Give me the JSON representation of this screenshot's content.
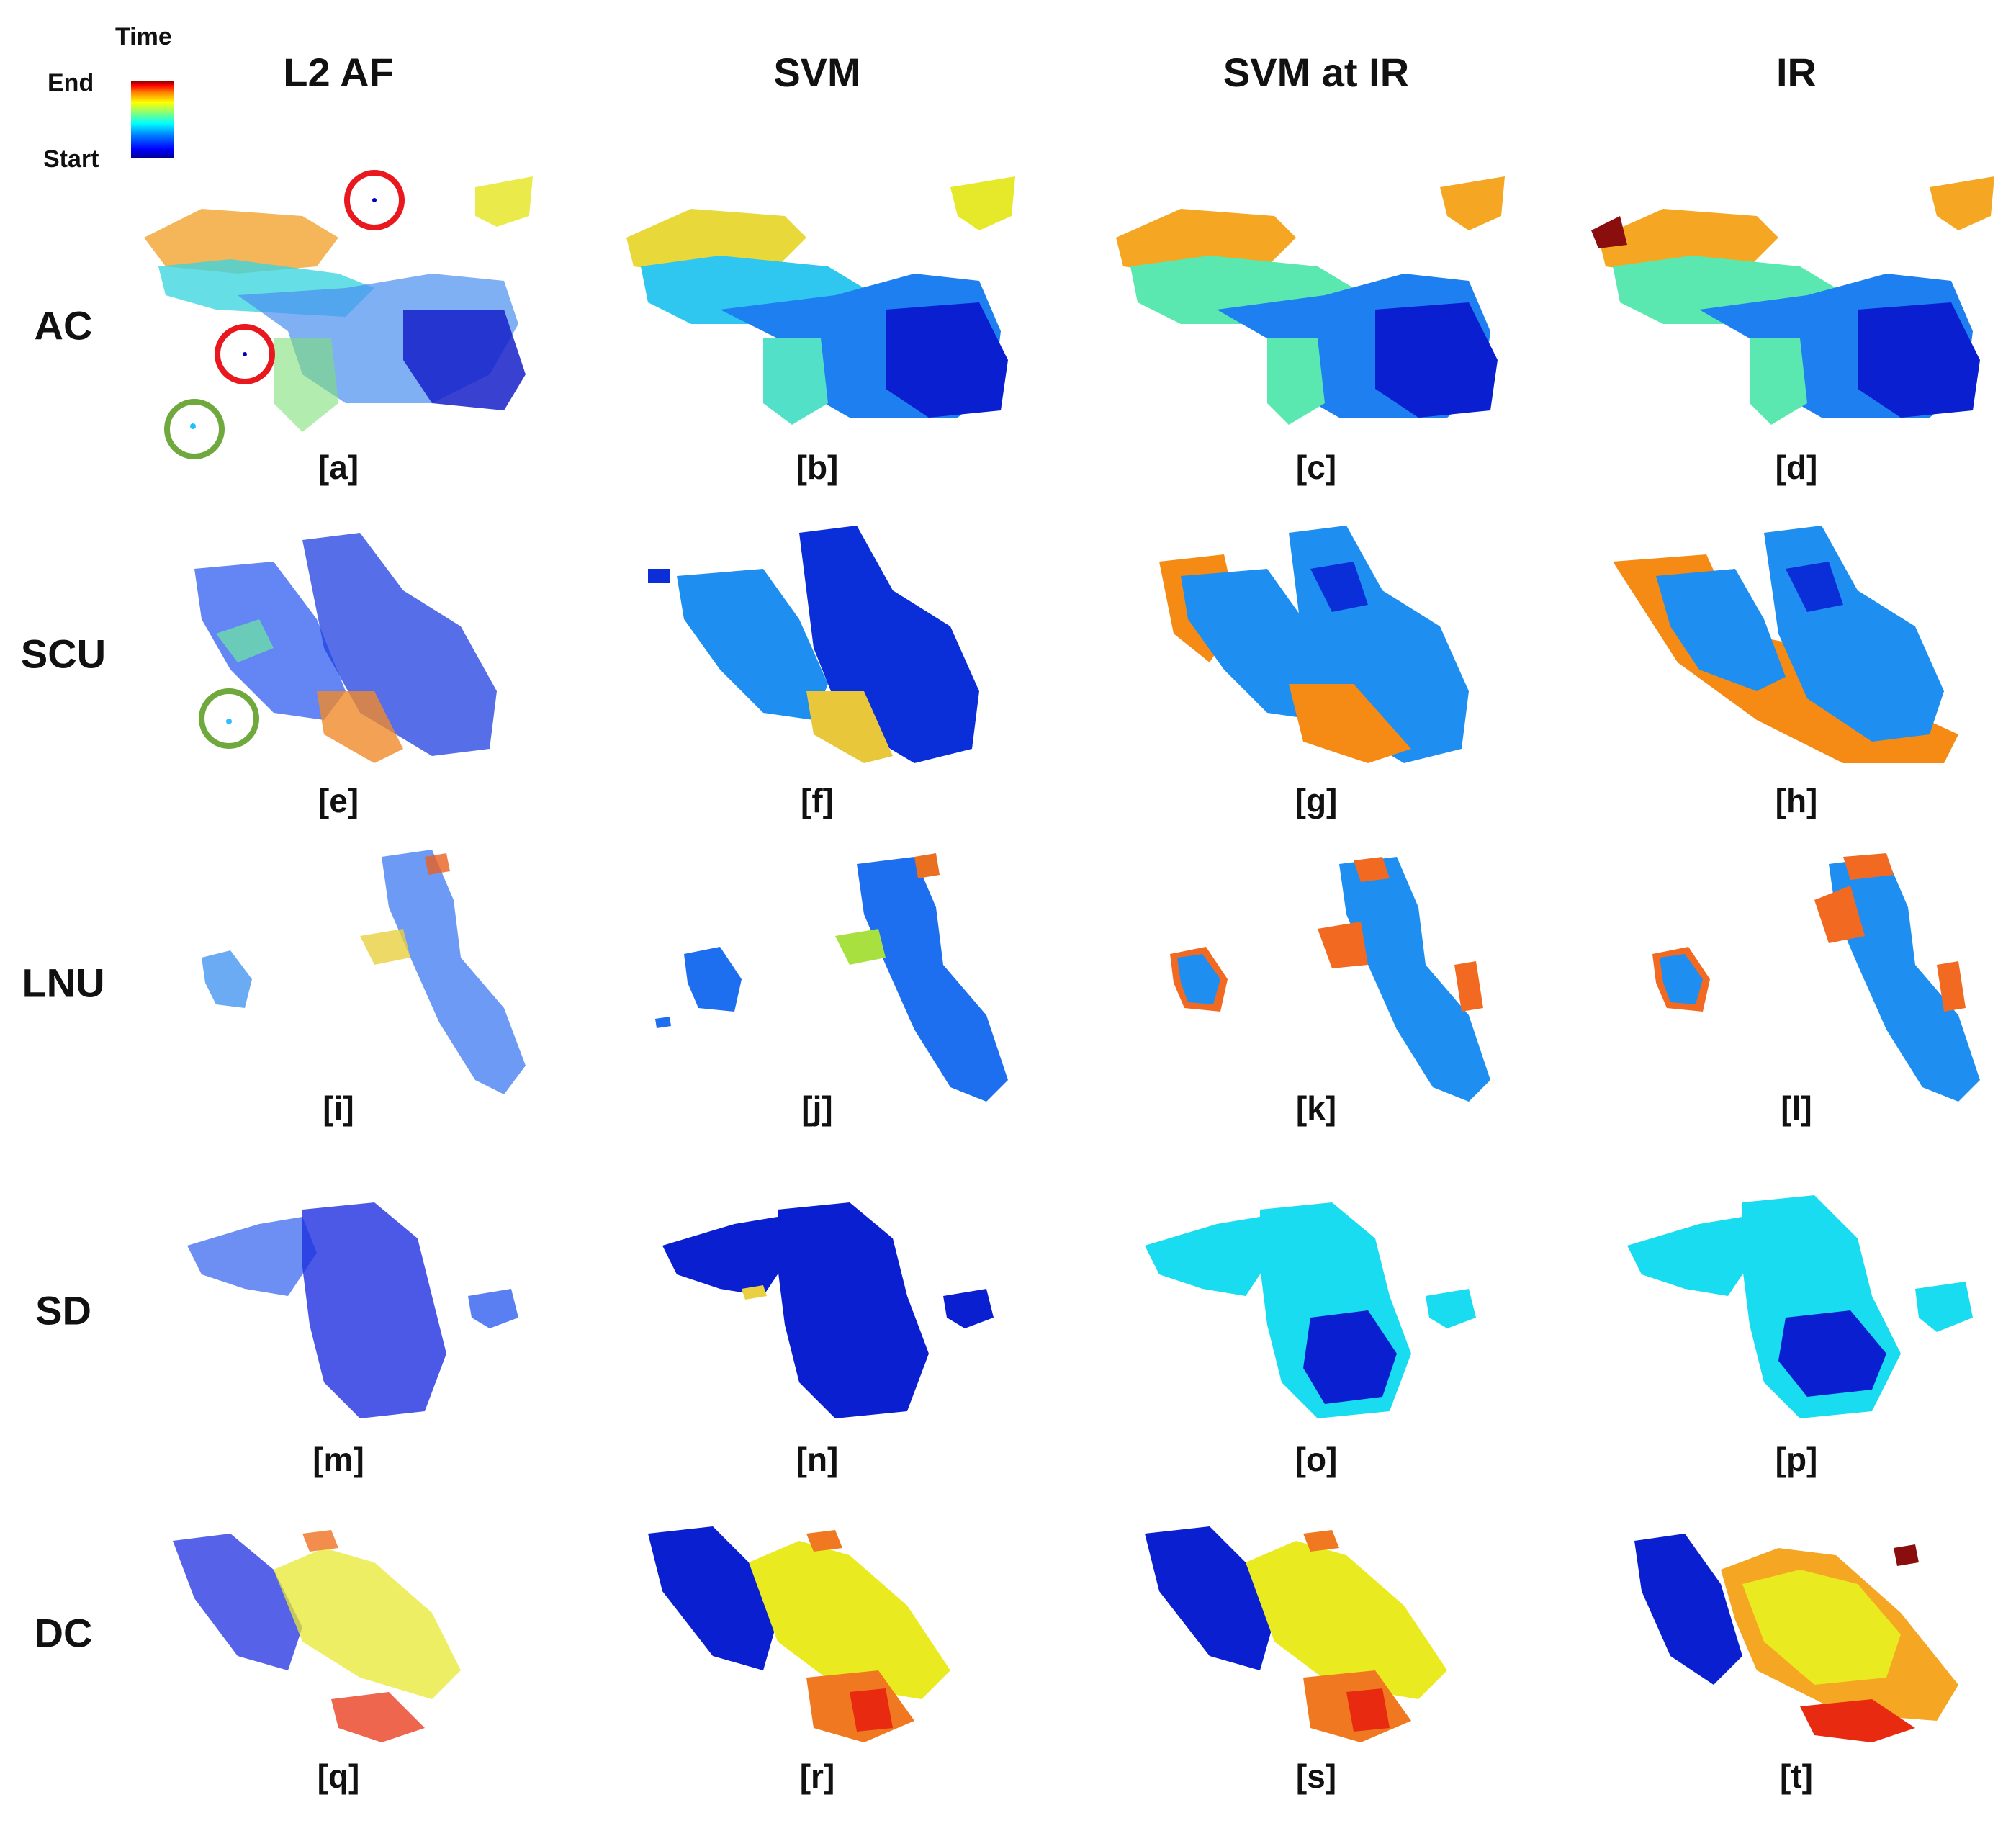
{
  "legend": {
    "title": "Time",
    "end_label": "End",
    "start_label": "Start"
  },
  "columns": [
    "L2 AF",
    "SVM",
    "SVM at IR",
    "IR"
  ],
  "rows": [
    "AC",
    "SCU",
    "LNU",
    "SD",
    "DC"
  ],
  "panel_labels": [
    "[a]",
    "[b]",
    "[c]",
    "[d]",
    "[e]",
    "[f]",
    "[g]",
    "[h]",
    "[i]",
    "[j]",
    "[k]",
    "[l]",
    "[m]",
    "[n]",
    "[o]",
    "[p]",
    "[q]",
    "[r]",
    "[s]",
    "[t]"
  ],
  "colors": {
    "red_circle": "#e8181e",
    "green_circle": "#6fa83d",
    "colormap": "jet"
  }
}
